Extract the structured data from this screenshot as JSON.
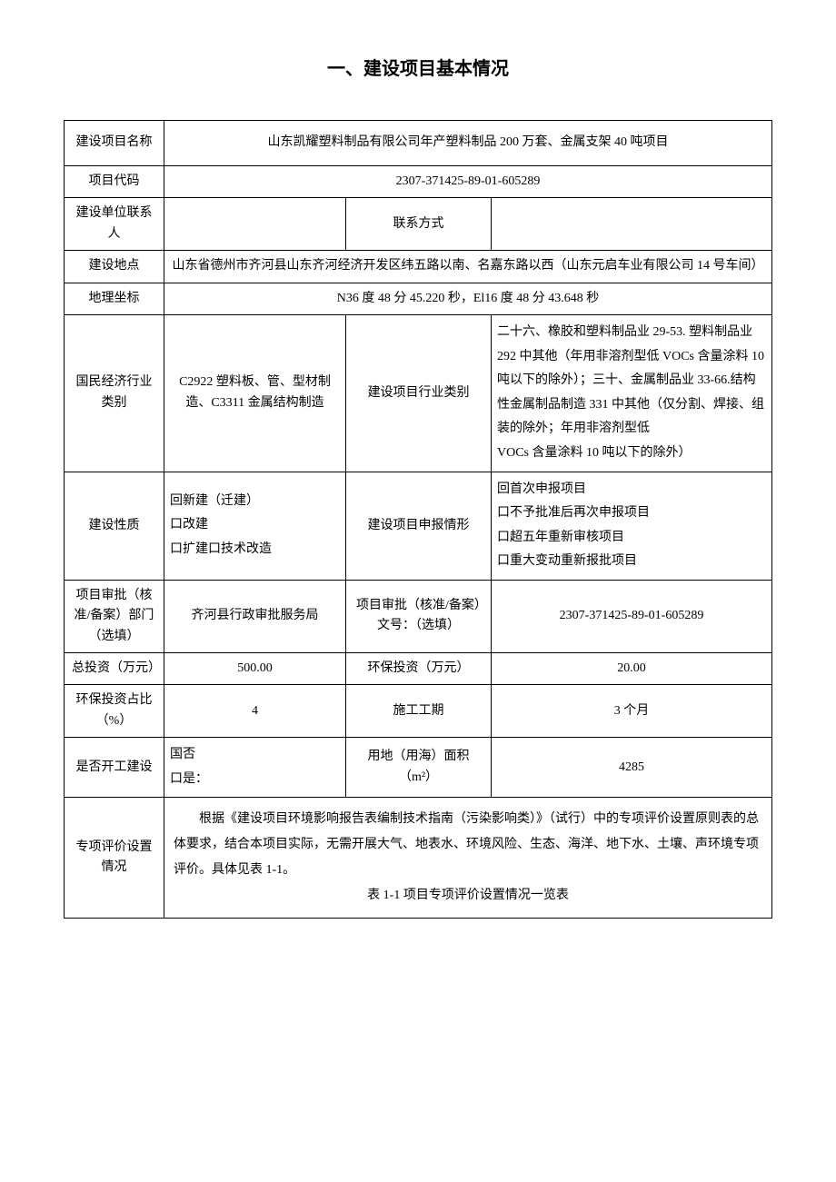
{
  "title": "一、建设项目基本情况",
  "rows": {
    "project_name": {
      "label": "建设项目名称",
      "value": "山东凯耀塑料制品有限公司年产塑料制品 200 万套、金属支架 40 吨项目"
    },
    "project_code": {
      "label": "项目代码",
      "value": "2307-371425-89-01-605289"
    },
    "contact": {
      "label": "建设单位联系人",
      "value": "",
      "mid_label": "联系方式",
      "mid_value": ""
    },
    "address": {
      "label": "建设地点",
      "value": "山东省德州市齐河县山东齐河经济开发区纬五路以南、名嘉东路以西（山东元启车业有限公司 14 号车间）"
    },
    "coords": {
      "label": "地理坐标",
      "value": "N36 度 48 分 45.220 秒，El16 度 48 分 43.648 秒"
    },
    "industry": {
      "label": "国民经济行业类别",
      "value": "C2922 塑料板、管、型材制造、C3311 金属结构制造",
      "mid_label": "建设项目行业类别",
      "mid_value": "二十六、橡胶和塑料制品业 29-53. 塑料制品业 292 中其他（年用非溶剂型低 VOCs 含量涂料 10 吨以下的除外）；三十、金属制品业 33-66.结构性金属制品制造 331 中其他（仅分割、焊接、组装的除外；年用非溶剂型低\nVOCs 含量涂料 10 吨以下的除外）"
    },
    "nature": {
      "label": "建设性质",
      "value": "回新建（迁建）\n口改建\n口扩建口技术改造",
      "mid_label": "建设项目申报情形",
      "mid_value": "回首次申报项目\n口不予批准后再次申报项目\n口超五年重新审核项目\n口重大变动重新报批项目"
    },
    "approval": {
      "label": "项目审批（核准/备案）部门（选填）",
      "value": "齐河县行政审批服务局",
      "mid_label": "项目审批（核准/备案）文号：（选填）",
      "mid_value": "2307-371425-89-01-605289"
    },
    "investment": {
      "label": "总投资（万元）",
      "value": "500.00",
      "mid_label": "环保投资（万元）",
      "mid_value": "20.00"
    },
    "ratio": {
      "label": "环保投资占比（%）",
      "value": "4",
      "mid_label": "施工工期",
      "mid_value": "3 个月"
    },
    "start": {
      "label": "是否开工建设",
      "value": "国否\n口是：",
      "mid_label": "用地（用海）面积（m²）",
      "mid_value": "4285"
    },
    "special_eval": {
      "label": "专项评价设置情况",
      "para": "根据《建设项目环境影响报告表编制技术指南（污染影响类）》（试行）中的专项评价设置原则表的总体要求，结合本项目实际，无需开展大气、地表水、环境风险、生态、海洋、地下水、土壤、声环境专项评价。具体见表 1-1。",
      "subtitle": "表 1-1 项目专项评价设置情况一览表"
    }
  },
  "style": {
    "background_color": "#ffffff",
    "text_color": "#000000",
    "border_color": "#000000",
    "title_fontsize": 20,
    "body_fontsize": 14,
    "font_family": "SimSun"
  }
}
